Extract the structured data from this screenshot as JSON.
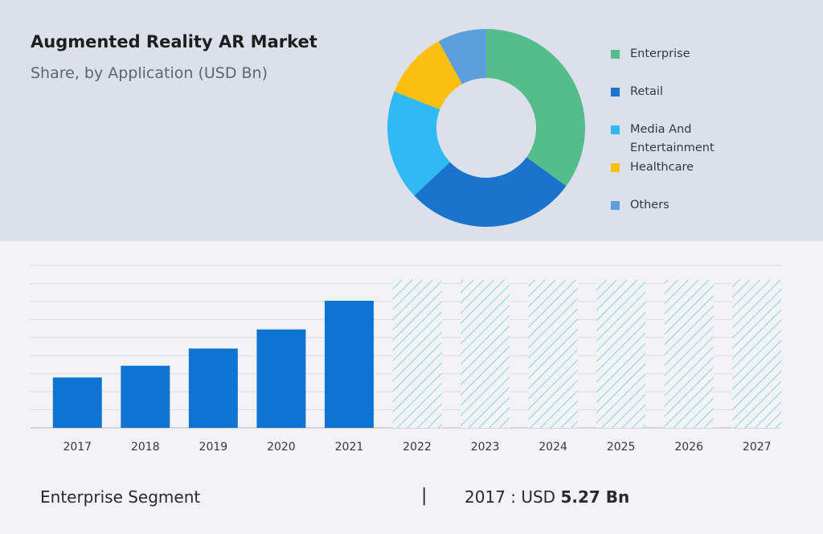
{
  "header": {
    "title": "Augmented Reality AR Market",
    "subtitle": "Share, by Application (USD Bn)"
  },
  "chart_data": [
    {
      "type": "pie",
      "style": "donut",
      "categories": [
        "Enterprise",
        "Retail",
        "Media And Entertainment",
        "Healthcare",
        "Others"
      ],
      "values": [
        35,
        28,
        18,
        11,
        8
      ],
      "colors": [
        "#55bc8c",
        "#1b74cc",
        "#2fbaf5",
        "#fbbf10",
        "#5b9fdc"
      ],
      "legend_position": "right"
    },
    {
      "type": "bar",
      "categories": [
        "2017",
        "2018",
        "2019",
        "2020",
        "2021",
        "2022",
        "2023",
        "2024",
        "2025",
        "2026",
        "2027"
      ],
      "values": [
        5.27,
        6.5,
        8.3,
        10.3,
        13.3,
        15.5,
        15.5,
        15.5,
        15.5,
        15.5,
        15.5
      ],
      "forecast": [
        false,
        false,
        false,
        false,
        false,
        true,
        true,
        true,
        true,
        true,
        true
      ],
      "ylim": [
        0,
        17
      ],
      "grid": true,
      "bar_color": "#0f73d1",
      "forecast_color": "#8fd3ea"
    }
  ],
  "footer": {
    "segment_label": "Enterprise Segment",
    "separator": "|",
    "year_prefix": "2017 :  USD ",
    "value": "5.27 Bn"
  }
}
